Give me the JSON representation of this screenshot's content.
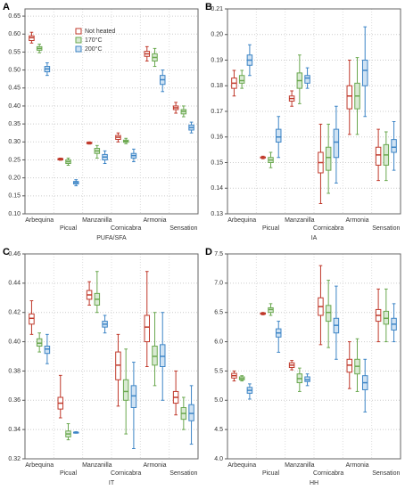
{
  "chart_data": [
    {
      "type": "box",
      "label": "A",
      "xlabel": "PUFA/SFA",
      "legend": "upper center",
      "categories": [
        "Arbequina",
        "Picual",
        "Manzanilla",
        "Cornicabra",
        "Armonia",
        "Sensation"
      ],
      "ylim": [
        0.1,
        0.67
      ],
      "yticks": [
        {
          "value": 0.1,
          "label": "0.10"
        },
        0.15,
        {
          "value": 0.2,
          "label": "0.20"
        },
        0.25,
        {
          "value": 0.3,
          "label": "0.30"
        },
        0.35,
        {
          "value": 0.4,
          "label": "0.40"
        },
        0.45,
        {
          "value": 0.5,
          "label": "0.50"
        },
        0.55,
        {
          "value": 0.6,
          "label": "0.60"
        },
        0.65
      ],
      "series": [
        {
          "name": "Not heated",
          "color": "#c0392b",
          "fill": "#ffffff",
          "whisker_low": [
            0.575,
            0.249,
            0.294,
            0.3,
            0.525,
            0.38
          ],
          "q1": [
            0.582,
            0.25,
            0.295,
            0.307,
            0.538,
            0.39
          ],
          "median": [
            0.59,
            0.252,
            0.297,
            0.313,
            0.545,
            0.395
          ],
          "q3": [
            0.595,
            0.254,
            0.299,
            0.318,
            0.552,
            0.4
          ],
          "whisker_high": [
            0.605,
            0.255,
            0.3,
            0.325,
            0.565,
            0.41
          ]
        },
        {
          "name": "170°C",
          "color": "#6aa84f",
          "fill": "#d9ead3",
          "whisker_low": [
            0.548,
            0.235,
            0.255,
            0.295,
            0.51,
            0.37
          ],
          "q1": [
            0.555,
            0.24,
            0.268,
            0.299,
            0.525,
            0.378
          ],
          "median": [
            0.56,
            0.245,
            0.275,
            0.302,
            0.535,
            0.385
          ],
          "q3": [
            0.565,
            0.25,
            0.282,
            0.305,
            0.545,
            0.39
          ],
          "whisker_high": [
            0.572,
            0.255,
            0.29,
            0.31,
            0.56,
            0.4
          ]
        },
        {
          "name": "200°C",
          "color": "#3d85c6",
          "fill": "#cfe2f3",
          "whisker_low": [
            0.485,
            0.178,
            0.24,
            0.245,
            0.44,
            0.325
          ],
          "q1": [
            0.495,
            0.183,
            0.25,
            0.255,
            0.46,
            0.333
          ],
          "median": [
            0.503,
            0.187,
            0.258,
            0.262,
            0.473,
            0.34
          ],
          "q3": [
            0.51,
            0.19,
            0.265,
            0.268,
            0.485,
            0.347
          ],
          "whisker_high": [
            0.52,
            0.195,
            0.275,
            0.28,
            0.5,
            0.355
          ]
        }
      ]
    },
    {
      "type": "box",
      "label": "B",
      "xlabel": "IA",
      "categories": [
        "Arbequina",
        "Picual",
        "Manzanilla",
        "Cornicabra",
        "Armonia",
        "Sensation"
      ],
      "ylim": [
        0.13,
        0.21
      ],
      "yticks": [
        0.13,
        0.14,
        0.15,
        0.16,
        0.17,
        0.18,
        0.19,
        {
          "value": 0.2,
          "label": "0.20"
        },
        0.21
      ],
      "series": [
        {
          "color": "#c0392b",
          "fill": "#ffffff",
          "whisker_low": [
            0.176,
            0.1515,
            0.172,
            0.134,
            0.161,
            0.143
          ],
          "q1": [
            0.179,
            0.1518,
            0.174,
            0.146,
            0.171,
            0.149
          ],
          "median": [
            0.181,
            0.152,
            0.175,
            0.15,
            0.176,
            0.153
          ],
          "q3": [
            0.183,
            0.1522,
            0.176,
            0.154,
            0.18,
            0.156
          ],
          "whisker_high": [
            0.186,
            0.1525,
            0.178,
            0.165,
            0.19,
            0.163
          ]
        },
        {
          "color": "#6aa84f",
          "fill": "#d9ead3",
          "whisker_low": [
            0.179,
            0.148,
            0.173,
            0.138,
            0.161,
            0.143
          ],
          "q1": [
            0.181,
            0.15,
            0.179,
            0.147,
            0.171,
            0.149
          ],
          "median": [
            0.182,
            0.151,
            0.182,
            0.152,
            0.176,
            0.153
          ],
          "q3": [
            0.184,
            0.152,
            0.185,
            0.156,
            0.181,
            0.157
          ],
          "whisker_high": [
            0.186,
            0.154,
            0.192,
            0.165,
            0.191,
            0.162
          ]
        },
        {
          "color": "#3d85c6",
          "fill": "#cfe2f3",
          "whisker_low": [
            0.184,
            0.152,
            0.179,
            0.142,
            0.168,
            0.147
          ],
          "q1": [
            0.188,
            0.158,
            0.181,
            0.152,
            0.18,
            0.154
          ],
          "median": [
            0.19,
            0.16,
            0.183,
            0.158,
            0.186,
            0.156
          ],
          "q3": [
            0.192,
            0.163,
            0.184,
            0.163,
            0.19,
            0.159
          ],
          "whisker_high": [
            0.196,
            0.168,
            0.187,
            0.172,
            0.203,
            0.166
          ]
        }
      ]
    },
    {
      "type": "box",
      "label": "C",
      "xlabel": "IT",
      "categories": [
        "Arbequina",
        "Picual",
        "Manzanilla",
        "Cornicabra",
        "Armonia",
        "Sensation"
      ],
      "ylim": [
        0.32,
        0.46
      ],
      "yticks": [
        0.32,
        0.34,
        0.36,
        0.38,
        {
          "value": 0.4,
          "label": "0.40"
        },
        0.42,
        0.44,
        0.46
      ],
      "series": [
        {
          "color": "#c0392b",
          "fill": "#ffffff",
          "whisker_low": [
            0.405,
            0.348,
            0.425,
            0.356,
            0.383,
            0.35
          ],
          "q1": [
            0.412,
            0.354,
            0.429,
            0.374,
            0.4,
            0.358
          ],
          "median": [
            0.416,
            0.358,
            0.432,
            0.384,
            0.41,
            0.362
          ],
          "q3": [
            0.419,
            0.362,
            0.435,
            0.393,
            0.418,
            0.366
          ],
          "whisker_high": [
            0.428,
            0.377,
            0.441,
            0.405,
            0.448,
            0.38
          ]
        },
        {
          "color": "#6aa84f",
          "fill": "#d9ead3",
          "whisker_low": [
            0.393,
            0.333,
            0.42,
            0.337,
            0.37,
            0.34
          ],
          "q1": [
            0.397,
            0.335,
            0.425,
            0.36,
            0.384,
            0.347
          ],
          "median": [
            0.399,
            0.337,
            0.429,
            0.366,
            0.39,
            0.351
          ],
          "q3": [
            0.402,
            0.339,
            0.433,
            0.374,
            0.397,
            0.355
          ],
          "whisker_high": [
            0.406,
            0.344,
            0.448,
            0.395,
            0.42,
            0.362
          ]
        },
        {
          "color": "#3d85c6",
          "fill": "#cfe2f3",
          "whisker_low": [
            0.385,
            0.3375,
            0.406,
            0.327,
            0.36,
            0.33
          ],
          "q1": [
            0.392,
            0.3378,
            0.41,
            0.355,
            0.383,
            0.346
          ],
          "median": [
            0.395,
            0.338,
            0.412,
            0.363,
            0.39,
            0.351
          ],
          "q3": [
            0.397,
            0.3382,
            0.414,
            0.37,
            0.398,
            0.357
          ],
          "whisker_high": [
            0.405,
            0.3385,
            0.418,
            0.386,
            0.42,
            0.37
          ]
        }
      ]
    },
    {
      "type": "box",
      "label": "D",
      "xlabel": "HH",
      "categories": [
        "Arbequina",
        "Picual",
        "Manzanilla",
        "Cornicabra",
        "Armonia",
        "Sensation"
      ],
      "ylim": [
        4.0,
        7.5
      ],
      "yticks": [
        {
          "value": 4,
          "label": "4.0"
        },
        4.5,
        {
          "value": 5,
          "label": "5.0"
        },
        5.5,
        {
          "value": 6,
          "label": "6.0"
        },
        6.5,
        {
          "value": 7,
          "label": "7.0"
        },
        7.5
      ],
      "series": [
        {
          "color": "#c0392b",
          "fill": "#ffffff",
          "whisker_low": [
            5.33,
            6.46,
            5.52,
            5.95,
            5.2,
            6.0
          ],
          "q1": [
            5.38,
            6.47,
            5.56,
            6.45,
            5.48,
            6.35
          ],
          "median": [
            5.42,
            6.48,
            5.6,
            6.6,
            5.6,
            6.45
          ],
          "q3": [
            5.46,
            6.49,
            5.64,
            6.75,
            5.7,
            6.55
          ],
          "whisker_high": [
            5.5,
            6.5,
            5.68,
            7.3,
            6.0,
            6.9
          ]
        },
        {
          "color": "#6aa84f",
          "fill": "#d9ead3",
          "whisker_low": [
            5.33,
            6.45,
            5.15,
            5.9,
            5.15,
            6.0
          ],
          "q1": [
            5.35,
            6.5,
            5.3,
            6.35,
            5.45,
            6.3
          ],
          "median": [
            5.37,
            6.55,
            5.37,
            6.5,
            5.58,
            6.4
          ],
          "q3": [
            5.4,
            6.58,
            5.45,
            6.62,
            5.7,
            6.52
          ],
          "whisker_high": [
            5.42,
            6.65,
            5.55,
            7.05,
            6.05,
            6.9
          ]
        },
        {
          "color": "#3d85c6",
          "fill": "#cfe2f3",
          "whisker_low": [
            5.02,
            5.82,
            5.25,
            5.7,
            4.8,
            6.0
          ],
          "q1": [
            5.12,
            6.08,
            5.32,
            6.15,
            5.18,
            6.2
          ],
          "median": [
            5.17,
            6.15,
            5.35,
            6.28,
            5.3,
            6.3
          ],
          "q3": [
            5.22,
            6.22,
            5.4,
            6.4,
            5.42,
            6.4
          ],
          "whisker_high": [
            5.28,
            6.35,
            5.45,
            6.95,
            5.7,
            6.65
          ]
        }
      ]
    }
  ]
}
